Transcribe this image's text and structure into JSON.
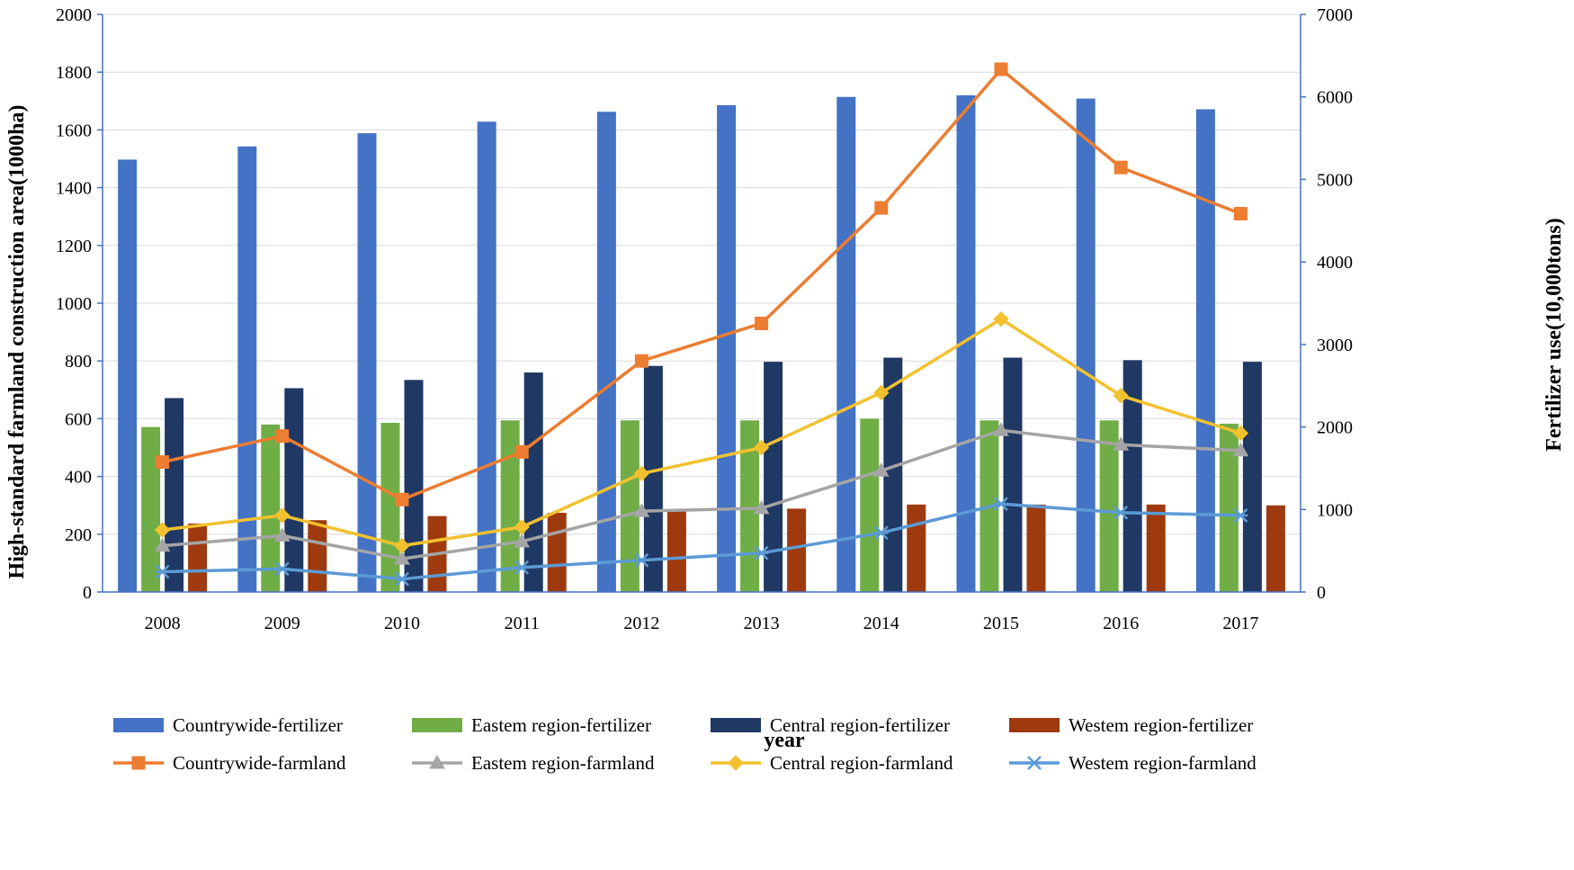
{
  "chart_data": {
    "type": "bar",
    "title": "",
    "xlabel": "year",
    "ylabel_left": "High-standard farmland construction area(1000ha)",
    "ylabel_right": "Fertilizer use(10,000tons)",
    "ylim_left": [
      0,
      2000
    ],
    "ylim_right": [
      0,
      7000
    ],
    "yticks_left": [
      0,
      200,
      400,
      600,
      800,
      1000,
      1200,
      1400,
      1600,
      1800,
      2000
    ],
    "yticks_right": [
      0,
      1000,
      2000,
      3000,
      4000,
      5000,
      6000,
      7000
    ],
    "grid": true,
    "legend_position": "bottom",
    "categories": [
      "2008",
      "2009",
      "2010",
      "2011",
      "2012",
      "2013",
      "2014",
      "2015",
      "2016",
      "2017"
    ],
    "bar_series": [
      {
        "name": "Countrywide-fertilizer",
        "axis": "right",
        "color": "#4472c4",
        "values": [
          5240,
          5400,
          5560,
          5700,
          5820,
          5900,
          6000,
          6020,
          5980,
          5850
        ]
      },
      {
        "name": "Eastem region-fertilizer",
        "axis": "right",
        "color": "#70ad47",
        "values": [
          2000,
          2030,
          2050,
          2080,
          2080,
          2080,
          2100,
          2080,
          2080,
          2040
        ]
      },
      {
        "name": "Central region-fertilizer",
        "axis": "right",
        "color": "#203864",
        "values": [
          2350,
          2470,
          2570,
          2660,
          2740,
          2790,
          2840,
          2840,
          2810,
          2790
        ]
      },
      {
        "name": "Westem region-fertilizer",
        "axis": "right",
        "color": "#9e3a0e",
        "values": [
          830,
          870,
          920,
          960,
          980,
          1010,
          1060,
          1060,
          1060,
          1050
        ]
      }
    ],
    "line_series": [
      {
        "name": "Countrywide-farmland",
        "axis": "left",
        "color": "#ed7d31",
        "marker": "square",
        "values": [
          450,
          540,
          320,
          485,
          800,
          930,
          1330,
          1810,
          1470,
          1310
        ]
      },
      {
        "name": "Eastem region-farmland",
        "axis": "left",
        "color": "#a5a5a5",
        "marker": "triangle",
        "values": [
          160,
          195,
          115,
          175,
          280,
          290,
          420,
          560,
          510,
          490
        ]
      },
      {
        "name": "Central region-farmland",
        "axis": "left",
        "color": "#f2c12e",
        "marker": "diamond",
        "values": [
          215,
          265,
          160,
          225,
          410,
          500,
          690,
          945,
          680,
          550
        ]
      },
      {
        "name": "Westem region-farmland",
        "axis": "left",
        "color": "#5b9bd5",
        "marker": "star",
        "values": [
          70,
          80,
          45,
          85,
          110,
          135,
          205,
          305,
          275,
          265
        ]
      }
    ]
  }
}
